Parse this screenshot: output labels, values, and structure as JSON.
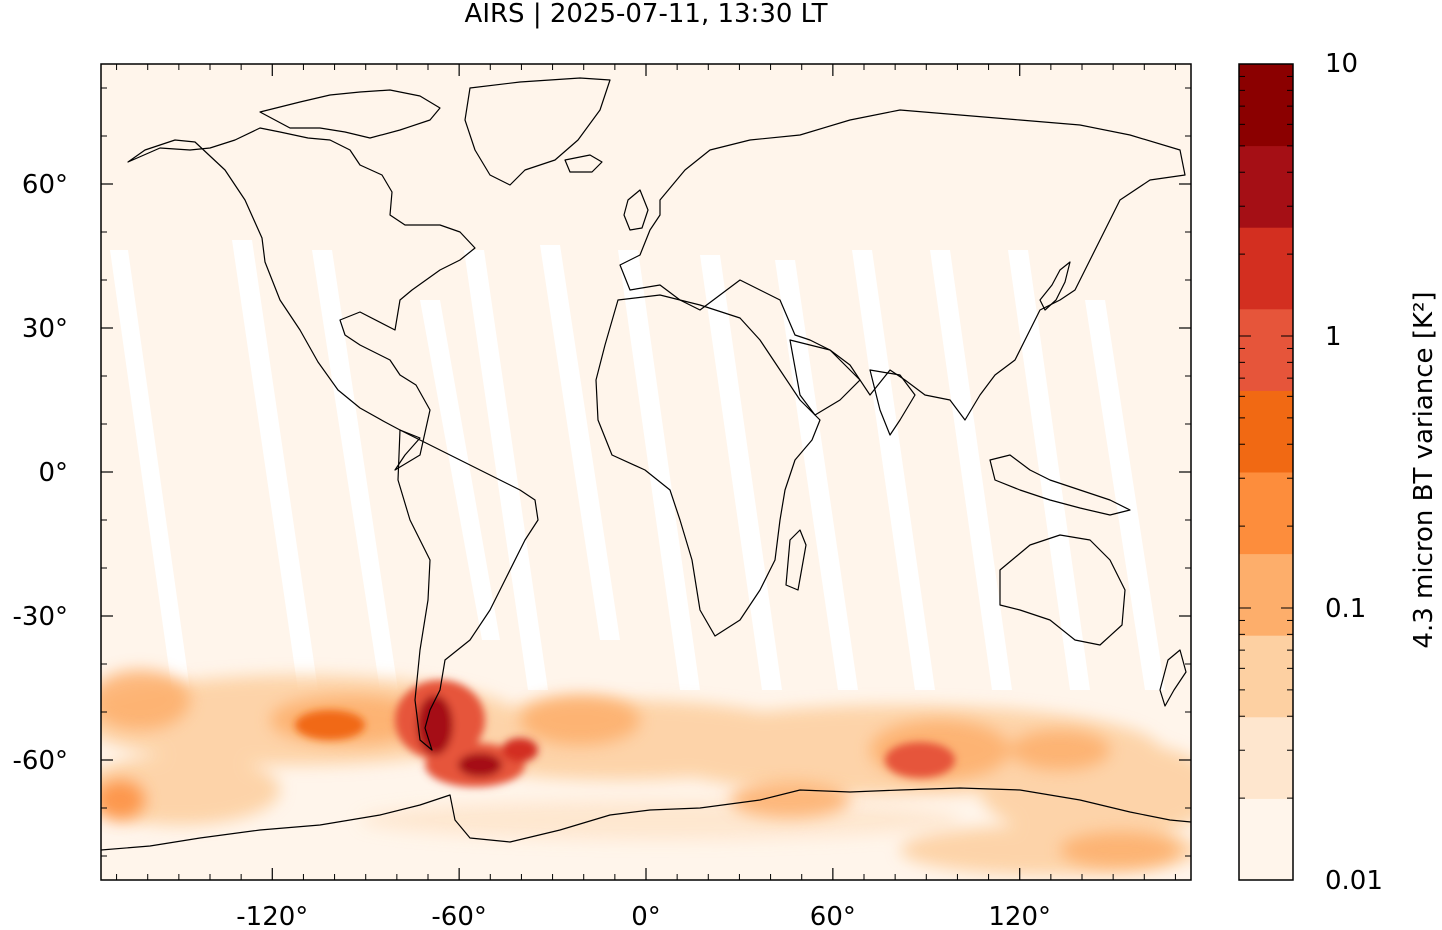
{
  "title": "AIRS | 2025-07-11, 13:30 LT",
  "map": {
    "lon_ticks": [
      -120,
      -60,
      0,
      60,
      120
    ],
    "lon_tick_labels": [
      "-120°",
      "-60°",
      "0°",
      "60°",
      "120°"
    ],
    "lat_ticks": [
      60,
      30,
      0,
      -30,
      -60
    ],
    "lat_tick_labels": [
      "60°",
      "30°",
      "0°",
      "-30°",
      "-60°"
    ],
    "lon_range": [
      -175,
      175
    ],
    "lat_range": [
      85,
      -85
    ],
    "ocean_color": "#fff5eb",
    "gap_color": "#ffffff",
    "coastline_color": "#000000"
  },
  "colorbar": {
    "label": "4.3 micron BT variance [K²]",
    "scale": "log",
    "range": [
      0.01,
      10
    ],
    "tick_labels": [
      "10",
      "1",
      "0.1",
      "0.01"
    ],
    "colors": [
      "#fff5eb",
      "#fee6ce",
      "#fdd0a2",
      "#fdae6b",
      "#fd8d3c",
      "#f16913",
      "#e6553a",
      "#d32f20",
      "#a50f15",
      "#8b0000"
    ]
  }
}
